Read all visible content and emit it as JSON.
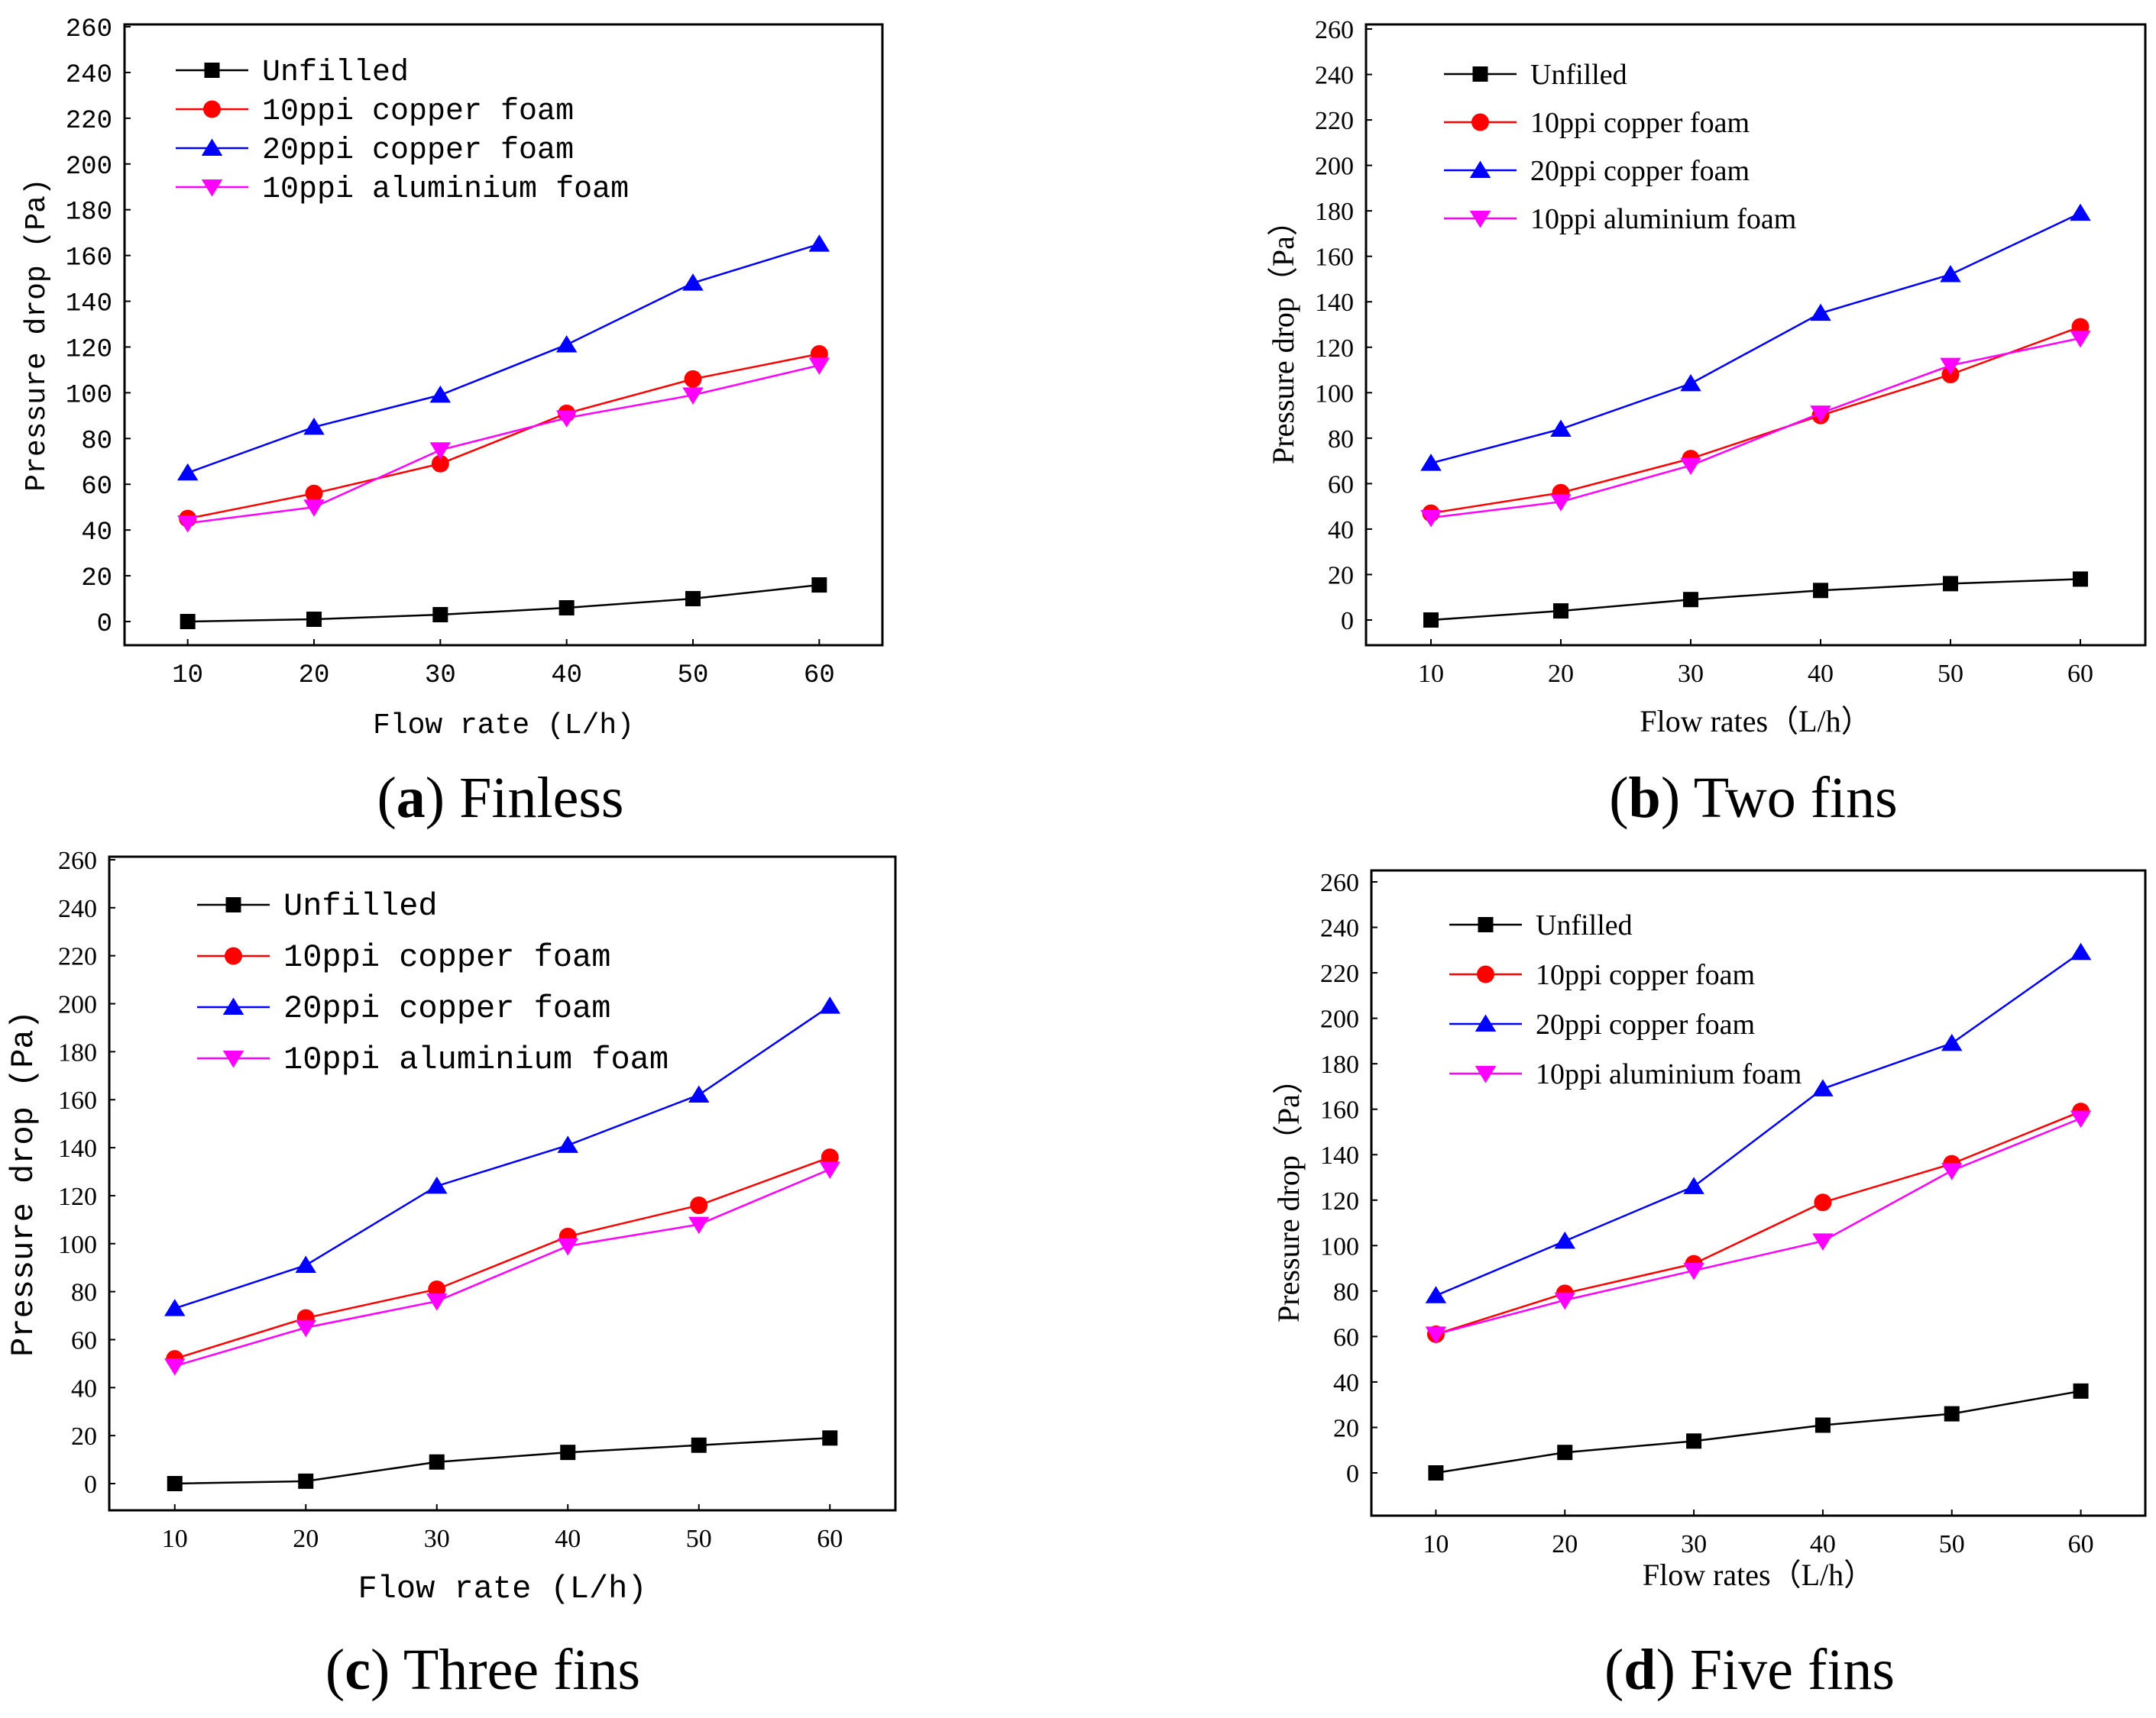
{
  "chart_data": [
    {
      "type": "line",
      "panel_label": "(a)",
      "caption_bold": "a",
      "caption_text": "Finless",
      "xlabel": "Flow rate (L/h)",
      "ylabel": "Pressure drop (Pa)",
      "x": [
        10,
        20,
        30,
        40,
        50,
        60
      ],
      "xlim": [
        5,
        65
      ],
      "ylim": [
        -10,
        260
      ],
      "xticks": [
        "10",
        "20",
        "30",
        "40",
        "50",
        "60"
      ],
      "yticks": [
        "0",
        "20",
        "40",
        "60",
        "80",
        "100",
        "120",
        "140",
        "160",
        "180",
        "200",
        "220",
        "240",
        "260"
      ],
      "legend_position": "top-left",
      "series": [
        {
          "name": "Unfilled",
          "values": [
            0,
            1,
            3,
            6,
            10,
            16
          ]
        },
        {
          "name": "10ppi copper foam",
          "values": [
            45,
            56,
            69,
            91,
            106,
            117
          ]
        },
        {
          "name": "20ppi copper foam",
          "values": [
            65,
            85,
            99,
            121,
            148,
            165
          ]
        },
        {
          "name": "10ppi aluminium foam",
          "values": [
            43,
            50,
            75,
            89,
            99,
            112
          ]
        }
      ]
    },
    {
      "type": "line",
      "panel_label": "(b)",
      "caption_bold": "b",
      "caption_text": "Two fins",
      "xlabel": "Flow rates（L/h）",
      "ylabel": "Pressure drop（Pa）",
      "x": [
        10,
        20,
        30,
        40,
        50,
        60
      ],
      "xlim": [
        5,
        65
      ],
      "ylim": [
        -10,
        260
      ],
      "xticks": [
        "10",
        "20",
        "30",
        "40",
        "50",
        "60"
      ],
      "yticks": [
        "0",
        "20",
        "40",
        "60",
        "80",
        "100",
        "120",
        "140",
        "160",
        "180",
        "200",
        "220",
        "240",
        "260"
      ],
      "legend_position": "top-left",
      "series": [
        {
          "name": "Unfilled",
          "values": [
            0,
            4,
            9,
            13,
            16,
            18
          ]
        },
        {
          "name": "10ppi copper foam",
          "values": [
            47,
            56,
            71,
            90,
            108,
            129
          ]
        },
        {
          "name": "20ppi copper foam",
          "values": [
            69,
            84,
            104,
            135,
            152,
            179
          ]
        },
        {
          "name": "10ppi aluminium foam",
          "values": [
            45,
            52,
            68,
            91,
            112,
            124
          ]
        }
      ]
    },
    {
      "type": "line",
      "panel_label": "(c)",
      "caption_bold": "c",
      "caption_text": "Three fins",
      "xlabel": "Flow rate (L/h)",
      "ylabel": "Pressure drop (Pa)",
      "x": [
        10,
        20,
        30,
        40,
        50,
        60
      ],
      "xlim": [
        5,
        65
      ],
      "ylim": [
        -10,
        260
      ],
      "xticks": [
        "10",
        "20",
        "30",
        "40",
        "50",
        "60"
      ],
      "yticks": [
        "0",
        "20",
        "40",
        "60",
        "80",
        "100",
        "120",
        "140",
        "160",
        "180",
        "200",
        "220",
        "240",
        "260"
      ],
      "legend_position": "top-left",
      "series": [
        {
          "name": "Unfilled",
          "values": [
            0,
            1,
            9,
            13,
            16,
            19
          ]
        },
        {
          "name": "10ppi copper foam",
          "values": [
            52,
            69,
            81,
            103,
            116,
            136
          ]
        },
        {
          "name": "20ppi copper foam",
          "values": [
            73,
            91,
            124,
            141,
            162,
            199
          ]
        },
        {
          "name": "10ppi aluminium foam",
          "values": [
            49,
            65,
            76,
            99,
            108,
            131
          ]
        }
      ]
    },
    {
      "type": "line",
      "panel_label": "(d)",
      "caption_bold": "d",
      "caption_text": "Five fins",
      "xlabel": "Flow rates（L/h）",
      "ylabel": "Pressure drop（Pa）",
      "x": [
        10,
        20,
        30,
        40,
        50,
        60
      ],
      "xlim": [
        5,
        65
      ],
      "ylim": [
        -10,
        260
      ],
      "xticks": [
        "10",
        "20",
        "30",
        "40",
        "50",
        "60"
      ],
      "yticks": [
        "0",
        "20",
        "40",
        "60",
        "80",
        "100",
        "120",
        "140",
        "160",
        "180",
        "200",
        "220",
        "240",
        "260"
      ],
      "legend_position": "top-left",
      "series": [
        {
          "name": "Unfilled",
          "values": [
            0,
            9,
            14,
            21,
            26,
            36
          ]
        },
        {
          "name": "10ppi copper foam",
          "values": [
            61,
            79,
            92,
            119,
            136,
            159
          ]
        },
        {
          "name": "20ppi copper foam",
          "values": [
            78,
            102,
            126,
            169,
            189,
            229
          ]
        },
        {
          "name": "10ppi aluminium foam",
          "values": [
            61,
            76,
            89,
            102,
            133,
            156
          ]
        }
      ]
    }
  ],
  "series_colors": [
    "#000000",
    "#ff0000",
    "#0000ff",
    "#ff00ff"
  ],
  "series_markers": [
    "square",
    "circle",
    "triangle-up",
    "triangle-down"
  ]
}
